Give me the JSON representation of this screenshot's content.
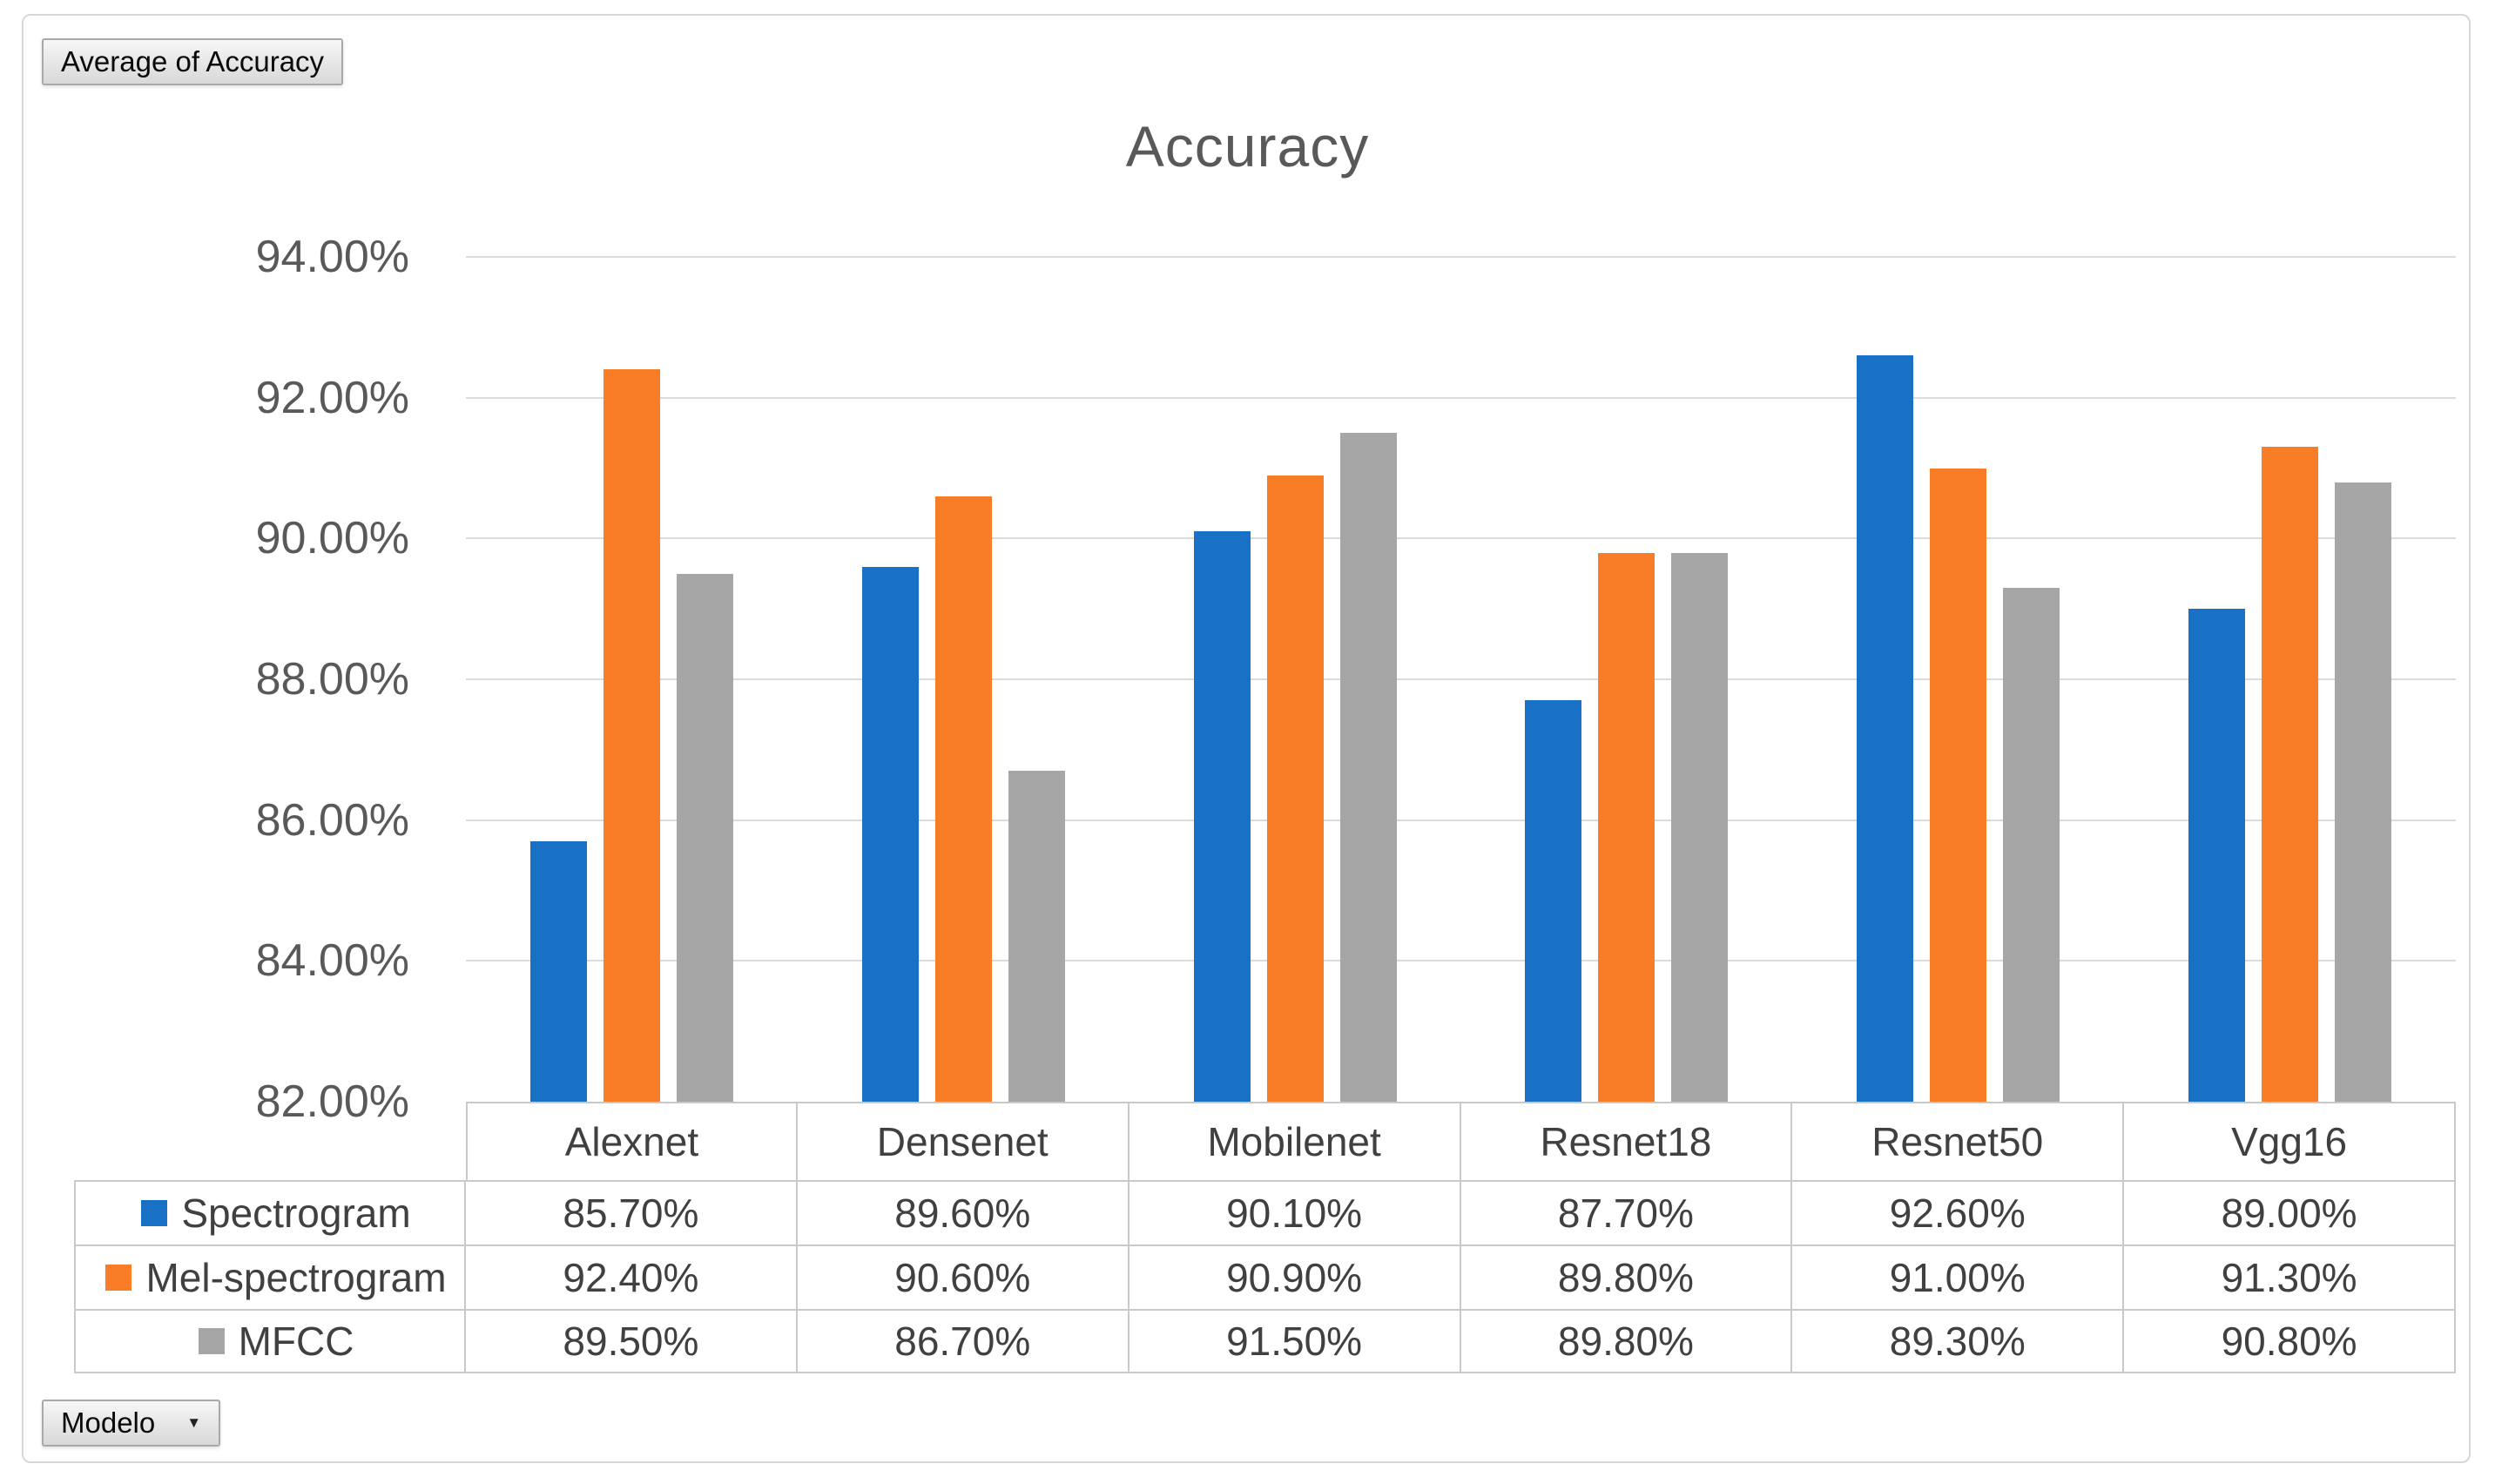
{
  "pivot_buttons": {
    "values_button": "Average of Accuracy",
    "axis_button": "Modelo",
    "axis_button_arrow": "▼"
  },
  "chart_data": {
    "type": "bar",
    "title": "Accuracy",
    "categories": [
      "Alexnet",
      "Densenet",
      "Mobilenet",
      "Resnet18",
      "Resnet50",
      "Vgg16"
    ],
    "series": [
      {
        "name": "Spectrogram",
        "color": "#1871C5",
        "values": [
          85.7,
          89.6,
          90.1,
          87.7,
          92.6,
          89.0
        ],
        "labels": [
          "85.70%",
          "89.60%",
          "90.10%",
          "87.70%",
          "92.60%",
          "89.00%"
        ]
      },
      {
        "name": "Mel-spectrogram",
        "color": "#F97D26",
        "values": [
          92.4,
          90.6,
          90.9,
          89.8,
          91.0,
          91.3
        ],
        "labels": [
          "92.40%",
          "90.60%",
          "90.90%",
          "89.80%",
          "91.00%",
          "91.30%"
        ]
      },
      {
        "name": "MFCC",
        "color": "#A6A6A6",
        "values": [
          89.5,
          86.7,
          91.5,
          89.8,
          89.3,
          90.8
        ],
        "labels": [
          "89.50%",
          "86.70%",
          "91.50%",
          "89.80%",
          "89.30%",
          "90.80%"
        ]
      }
    ],
    "ylim": [
      82,
      94
    ],
    "yticks": [
      {
        "value": 94,
        "label": "94.00%"
      },
      {
        "value": 92,
        "label": "92.00%"
      },
      {
        "value": 90,
        "label": "90.00%"
      },
      {
        "value": 88,
        "label": "88.00%"
      },
      {
        "value": 86,
        "label": "86.00%"
      },
      {
        "value": 84,
        "label": "84.00%"
      },
      {
        "value": 82,
        "label": "82.00%"
      }
    ],
    "grid": true,
    "legend_position": "table-left",
    "xlabel": "",
    "ylabel": ""
  }
}
